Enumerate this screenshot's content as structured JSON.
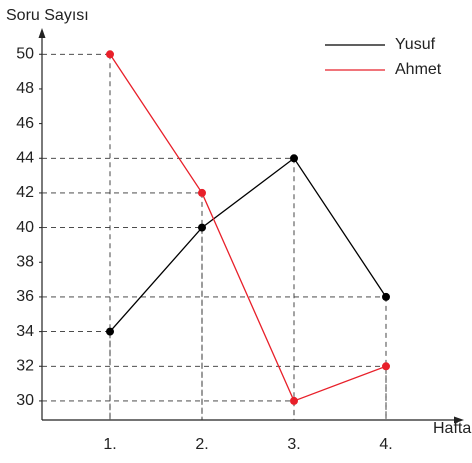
{
  "chart_data": {
    "type": "line",
    "xlabel": "Hafta",
    "ylabel": "Soru Sayısı",
    "categories": [
      "1.",
      "2.",
      "3.",
      "4."
    ],
    "series": [
      {
        "name": "Yusuf",
        "color": "#000000",
        "values": [
          34,
          40,
          44,
          36
        ]
      },
      {
        "name": "Ahmet",
        "color": "#e8202a",
        "values": [
          50,
          42,
          30,
          32
        ]
      }
    ],
    "ylim": [
      28.9,
      51.4
    ],
    "yticks": [
      30,
      32,
      34,
      36,
      38,
      40,
      42,
      44,
      46,
      48,
      50
    ],
    "legend": "upper right"
  }
}
